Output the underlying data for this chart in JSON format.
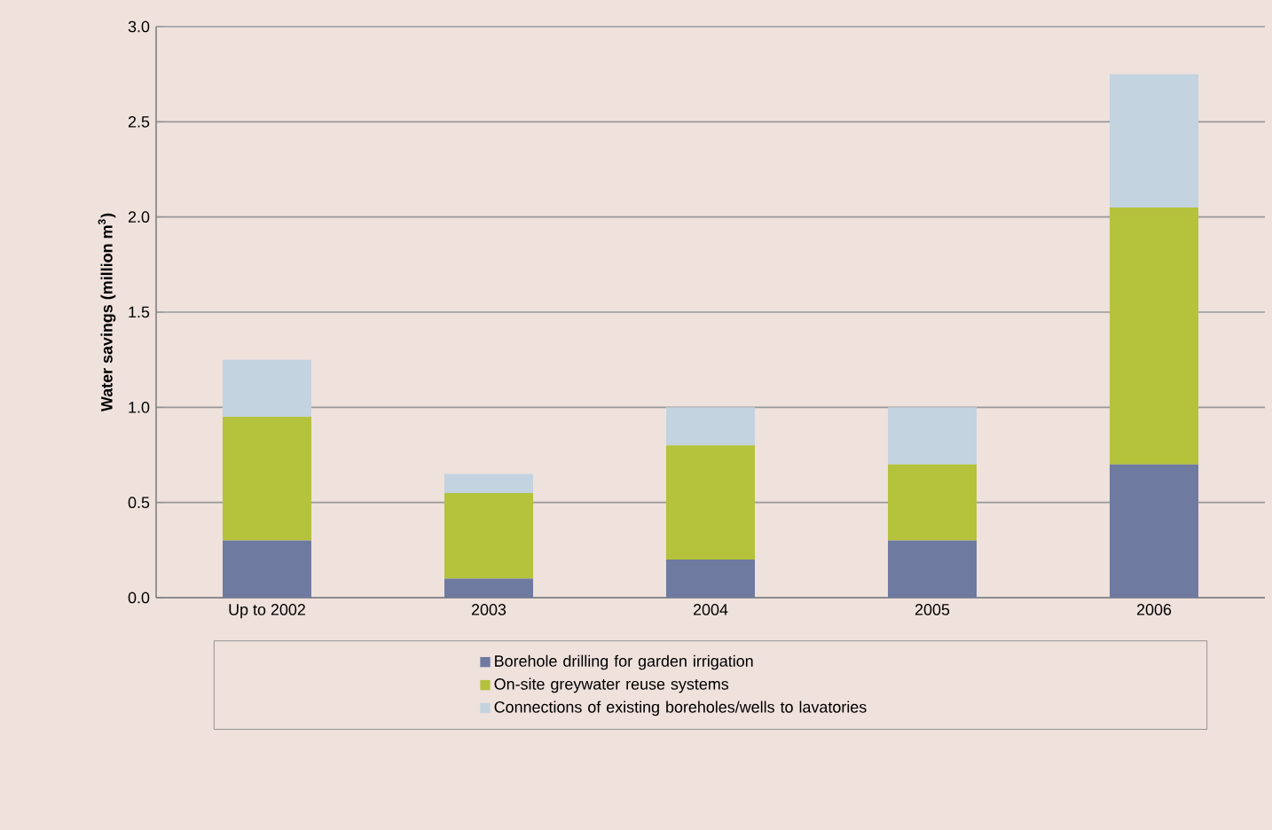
{
  "chart_data": {
    "type": "bar",
    "stacked": true,
    "ylabel": "Water savings  (million m$^{3}$)",
    "categories": [
      "Up to 2002",
      "2003",
      "2004",
      "2005",
      "2006"
    ],
    "series": [
      {
        "name": "Borehole drilling for garden irrigation",
        "color": "#6f7aa0",
        "values": [
          0.3,
          0.1,
          0.2,
          0.3,
          0.7
        ]
      },
      {
        "name": "On-site greywater reuse systems",
        "color": "#b5c23c",
        "values": [
          0.65,
          0.45,
          0.6,
          0.4,
          1.35
        ]
      },
      {
        "name": "Connections of existing boreholes/wells to lavatories",
        "color": "#c3d3df",
        "values": [
          0.3,
          0.1,
          0.2,
          0.3,
          0.7
        ]
      }
    ],
    "ylim": [
      0,
      3.0
    ],
    "yticks": [
      {
        "value": 0,
        "label": "0.0"
      },
      0.5,
      {
        "value": 1,
        "label": "1.0"
      },
      1.5,
      {
        "value": 2,
        "label": "2.0"
      },
      2.5,
      {
        "value": 3,
        "label": "3.0"
      }
    ],
    "grid": "y",
    "legend": "bottom"
  }
}
